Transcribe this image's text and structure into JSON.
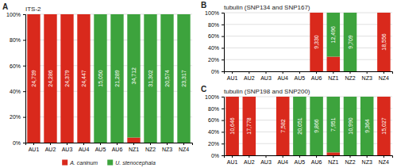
{
  "chart_data": [
    {
      "type": "bar",
      "stacked": true,
      "title": "ITS-2",
      "panel_label": "A",
      "categories": [
        "AU1",
        "AU2",
        "AU3",
        "AU4",
        "AU5",
        "AU6",
        "NZ1",
        "NZ2",
        "NZ3",
        "NZ4"
      ],
      "series": [
        {
          "name": "A. caninum",
          "color": "#d9291c",
          "values": [
            1.0,
            1.0,
            1.0,
            1.0,
            0.0,
            0.0,
            0.04,
            0.0,
            0.0,
            0.0
          ]
        },
        {
          "name": "U. stenocephala",
          "color": "#3da33d",
          "values": [
            0.0,
            0.0,
            0.0,
            0.0,
            1.0,
            1.0,
            0.96,
            1.0,
            1.0,
            1.0
          ]
        }
      ],
      "annotations": [
        "24,739",
        "24,286",
        "24,379",
        "24,447",
        "15,050",
        "21,289",
        "34,712",
        "31,302",
        "20,574",
        "23,317"
      ],
      "ylim": [
        0,
        1.0
      ],
      "yticks": [
        {
          "value": 0,
          "label": "0%"
        },
        {
          "value": 0.2,
          "label": "20%"
        },
        {
          "value": 0.4,
          "label": "40%"
        },
        {
          "value": 0.6,
          "label": "60%"
        },
        {
          "value": 0.8,
          "label": "80%"
        },
        {
          "value": 1.0,
          "label": "100%"
        }
      ],
      "grid": true,
      "legend": "bottom"
    },
    {
      "type": "bar",
      "stacked": true,
      "title": "tubulin (SNP134 and SNP167)",
      "panel_label": "B",
      "categories": [
        "AU1",
        "AU2",
        "AU3",
        "AU4",
        "AU5",
        "AU6",
        "NZ1",
        "NZ2",
        "NZ3",
        "NZ4"
      ],
      "series": [
        {
          "color": "#d9291c",
          "values": [
            null,
            null,
            null,
            null,
            null,
            1.0,
            0.25,
            0.0,
            null,
            1.0
          ]
        },
        {
          "color": "#3da33d",
          "values": [
            null,
            null,
            null,
            null,
            null,
            0.0,
            0.75,
            1.0,
            null,
            0.0
          ]
        }
      ],
      "annotations": [
        null,
        null,
        null,
        null,
        null,
        "9,330",
        "12,496",
        "9,709",
        null,
        "18,556"
      ],
      "ylim": [
        0,
        1.0
      ],
      "yticks": [
        {
          "value": 0,
          "label": "0%"
        },
        {
          "value": 0.2,
          "label": "20%"
        },
        {
          "value": 0.4,
          "label": "40%"
        },
        {
          "value": 0.6,
          "label": "60%"
        },
        {
          "value": 0.8,
          "label": "80%"
        },
        {
          "value": 1.0,
          "label": "100%"
        }
      ],
      "grid": true
    },
    {
      "type": "bar",
      "stacked": true,
      "title": "tubulin (SNP198 and SNP200)",
      "panel_label": "C",
      "categories": [
        "AU1",
        "AU2",
        "AU3",
        "AU4",
        "AU5",
        "AU6",
        "NZ1",
        "NZ2",
        "NZ3",
        "NZ4"
      ],
      "series": [
        {
          "color": "#d9291c",
          "values": [
            1.0,
            1.0,
            null,
            1.0,
            0.0,
            0.0,
            0.05,
            0.0,
            0.0,
            1.0
          ]
        },
        {
          "color": "#3da33d",
          "values": [
            0.0,
            0.0,
            null,
            0.0,
            1.0,
            1.0,
            0.95,
            1.0,
            1.0,
            0.0
          ]
        }
      ],
      "annotations": [
        "10,646",
        "17,778",
        null,
        "7,582",
        "20,051",
        "9,866",
        "7,951",
        "10,990",
        "9,364",
        "15,027"
      ],
      "ylim": [
        0,
        1.0
      ],
      "yticks": [
        {
          "value": 0,
          "label": "0%"
        },
        {
          "value": 0.2,
          "label": "20%"
        },
        {
          "value": 0.4,
          "label": "40%"
        },
        {
          "value": 0.6,
          "label": "60%"
        },
        {
          "value": 0.8,
          "label": "80%"
        },
        {
          "value": 1.0,
          "label": "100%"
        }
      ],
      "grid": true
    }
  ]
}
